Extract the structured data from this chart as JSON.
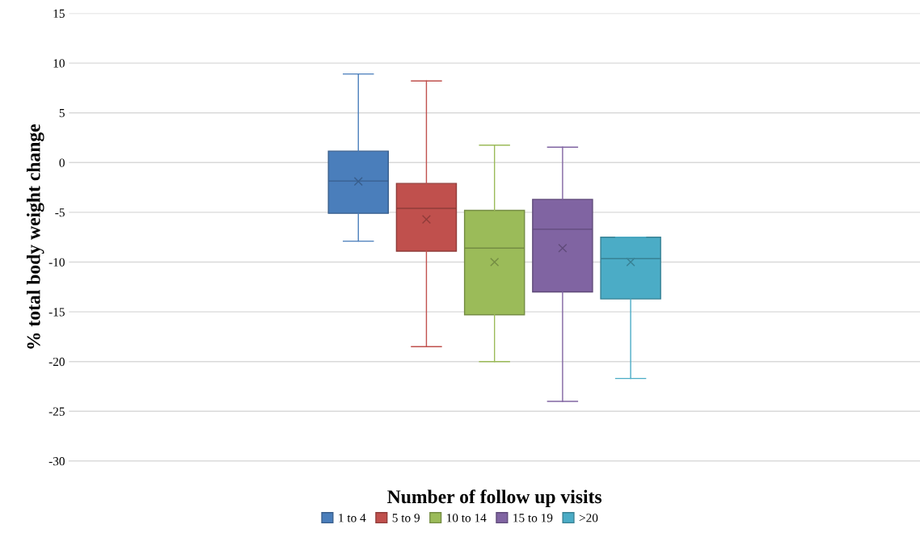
{
  "chart_data": {
    "type": "box",
    "xlabel": "Number of follow up visits",
    "ylabel": "% total body weight change",
    "categories": [
      null
    ],
    "series": [
      {
        "name": "1 to 4",
        "color": "#4a7ebb",
        "boxes": [
          {
            "low": -7.9,
            "q1": -5.1,
            "median": -1.85,
            "q3": 1.15,
            "high": 8.9,
            "mean": -1.9
          }
        ]
      },
      {
        "name": "5 to 9",
        "color": "#c0504d",
        "boxes": [
          {
            "low": -18.5,
            "q1": -8.9,
            "median": -4.6,
            "q3": -2.1,
            "high": 8.2,
            "mean": -5.7
          }
        ]
      },
      {
        "name": "10 to 14",
        "color": "#9bbb59",
        "boxes": [
          {
            "low": -20,
            "q1": -15.3,
            "median": -8.6,
            "q3": -4.8,
            "high": 1.75,
            "mean": -10
          }
        ]
      },
      {
        "name": "15 to 19",
        "color": "#8064a2",
        "boxes": [
          {
            "low": -24,
            "q1": -13,
            "median": -6.7,
            "q3": -3.7,
            "high": 1.55,
            "mean": -8.6
          }
        ]
      },
      {
        "name": ">20",
        "color": "#4bacc6",
        "boxes": [
          {
            "low": -21.7,
            "q1": -13.7,
            "median": -9.65,
            "q3": -7.5,
            "high": -7.5,
            "mean": -10
          }
        ]
      }
    ],
    "ylim": [
      -30,
      15
    ],
    "yticks": [
      -30,
      -25,
      -20,
      -15,
      -10,
      -5,
      0,
      5,
      10,
      15
    ],
    "grid": "y",
    "legend": "bottom",
    "marker": "cross"
  }
}
